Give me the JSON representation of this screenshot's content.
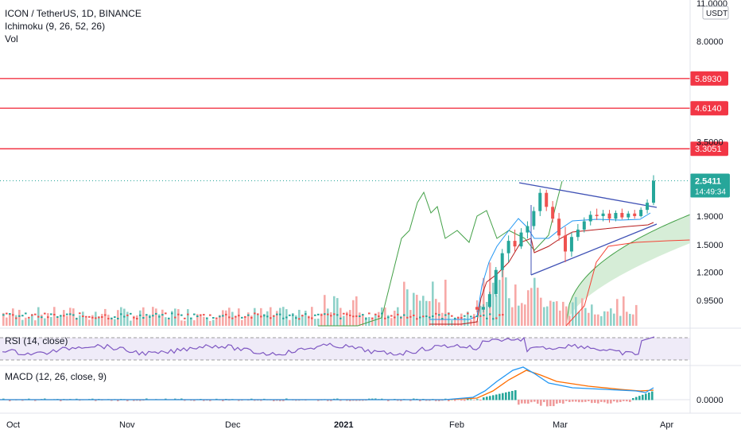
{
  "header": {
    "symbol": "ICON / TetherUS, 1D, BINANCE",
    "ichimoku": "Ichimoku (9, 26, 52, 26)",
    "vol": "Vol"
  },
  "price_axis": {
    "currency": "USDT",
    "ticks": [
      "11.0000",
      "8.0000",
      "3.5000",
      "1.9000",
      "1.5000",
      "1.2000",
      "0.9500"
    ],
    "scale": "log"
  },
  "price_badges": {
    "current_price": "2.5411",
    "countdown": "14:49:34",
    "levels": [
      "5.8930",
      "4.6140",
      "3.3051"
    ]
  },
  "rsi": {
    "label": "RSI (14, close)"
  },
  "macd": {
    "label": "MACD (12, 26, close, 9)",
    "zero_tick": "0.0000"
  },
  "time_axis": {
    "ticks": [
      "Oct",
      "Nov",
      "Dec",
      "2021",
      "Feb",
      "Mar",
      "Apr"
    ]
  },
  "colors": {
    "bull": "#26a69a",
    "bear": "#ef5350",
    "level_line": "#f23645",
    "tenkan": "#2196f3",
    "kijun": "#b71c1c",
    "span_b": "#f44336",
    "lagging": "#43a047",
    "cloud": "#a5d6a7",
    "rsi": "#7e57c2",
    "macd": "#2196f3",
    "signal": "#ff6d00",
    "trendline": "#3f51b5"
  },
  "chart_data": {
    "type": "candlestick",
    "resistance_levels": [
      5.893,
      4.614,
      3.3051
    ],
    "last_price": 2.5411,
    "ohlc_recent": [
      {
        "o": 0.9,
        "h": 0.95,
        "l": 0.86,
        "c": 0.88
      },
      {
        "o": 0.88,
        "h": 0.92,
        "l": 0.86,
        "c": 0.9
      },
      {
        "o": 0.9,
        "h": 1.02,
        "l": 0.89,
        "c": 1.0
      },
      {
        "o": 1.0,
        "h": 1.25,
        "l": 0.98,
        "c": 1.22
      },
      {
        "o": 1.22,
        "h": 1.45,
        "l": 1.15,
        "c": 1.4
      },
      {
        "o": 1.4,
        "h": 1.62,
        "l": 1.3,
        "c": 1.55
      },
      {
        "o": 1.55,
        "h": 1.7,
        "l": 1.42,
        "c": 1.48
      },
      {
        "o": 1.48,
        "h": 1.72,
        "l": 1.45,
        "c": 1.66
      },
      {
        "o": 1.66,
        "h": 1.82,
        "l": 1.58,
        "c": 1.75
      },
      {
        "o": 1.75,
        "h": 2.05,
        "l": 1.7,
        "c": 1.98
      },
      {
        "o": 1.98,
        "h": 2.38,
        "l": 1.9,
        "c": 2.3
      },
      {
        "o": 2.3,
        "h": 2.36,
        "l": 1.98,
        "c": 2.05
      },
      {
        "o": 2.05,
        "h": 2.15,
        "l": 1.8,
        "c": 1.86
      },
      {
        "o": 1.86,
        "h": 1.95,
        "l": 1.55,
        "c": 1.62
      },
      {
        "o": 1.62,
        "h": 1.74,
        "l": 1.3,
        "c": 1.42
      },
      {
        "o": 1.42,
        "h": 1.66,
        "l": 1.36,
        "c": 1.6
      },
      {
        "o": 1.6,
        "h": 1.78,
        "l": 1.55,
        "c": 1.7
      },
      {
        "o": 1.7,
        "h": 1.88,
        "l": 1.66,
        "c": 1.82
      },
      {
        "o": 1.82,
        "h": 1.98,
        "l": 1.76,
        "c": 1.92
      },
      {
        "o": 1.92,
        "h": 2.02,
        "l": 1.84,
        "c": 1.9
      },
      {
        "o": 1.9,
        "h": 2.0,
        "l": 1.82,
        "c": 1.94
      },
      {
        "o": 1.94,
        "h": 2.0,
        "l": 1.8,
        "c": 1.86
      },
      {
        "o": 1.86,
        "h": 1.99,
        "l": 1.82,
        "c": 1.95
      },
      {
        "o": 1.95,
        "h": 2.02,
        "l": 1.85,
        "c": 1.88
      },
      {
        "o": 1.88,
        "h": 1.98,
        "l": 1.84,
        "c": 1.94
      },
      {
        "o": 1.94,
        "h": 2.0,
        "l": 1.86,
        "c": 1.9
      },
      {
        "o": 1.9,
        "h": 2.04,
        "l": 1.88,
        "c": 2.0
      },
      {
        "o": 2.0,
        "h": 2.18,
        "l": 1.94,
        "c": 2.12
      },
      {
        "o": 2.12,
        "h": 2.66,
        "l": 2.08,
        "c": 2.5411
      }
    ]
  }
}
